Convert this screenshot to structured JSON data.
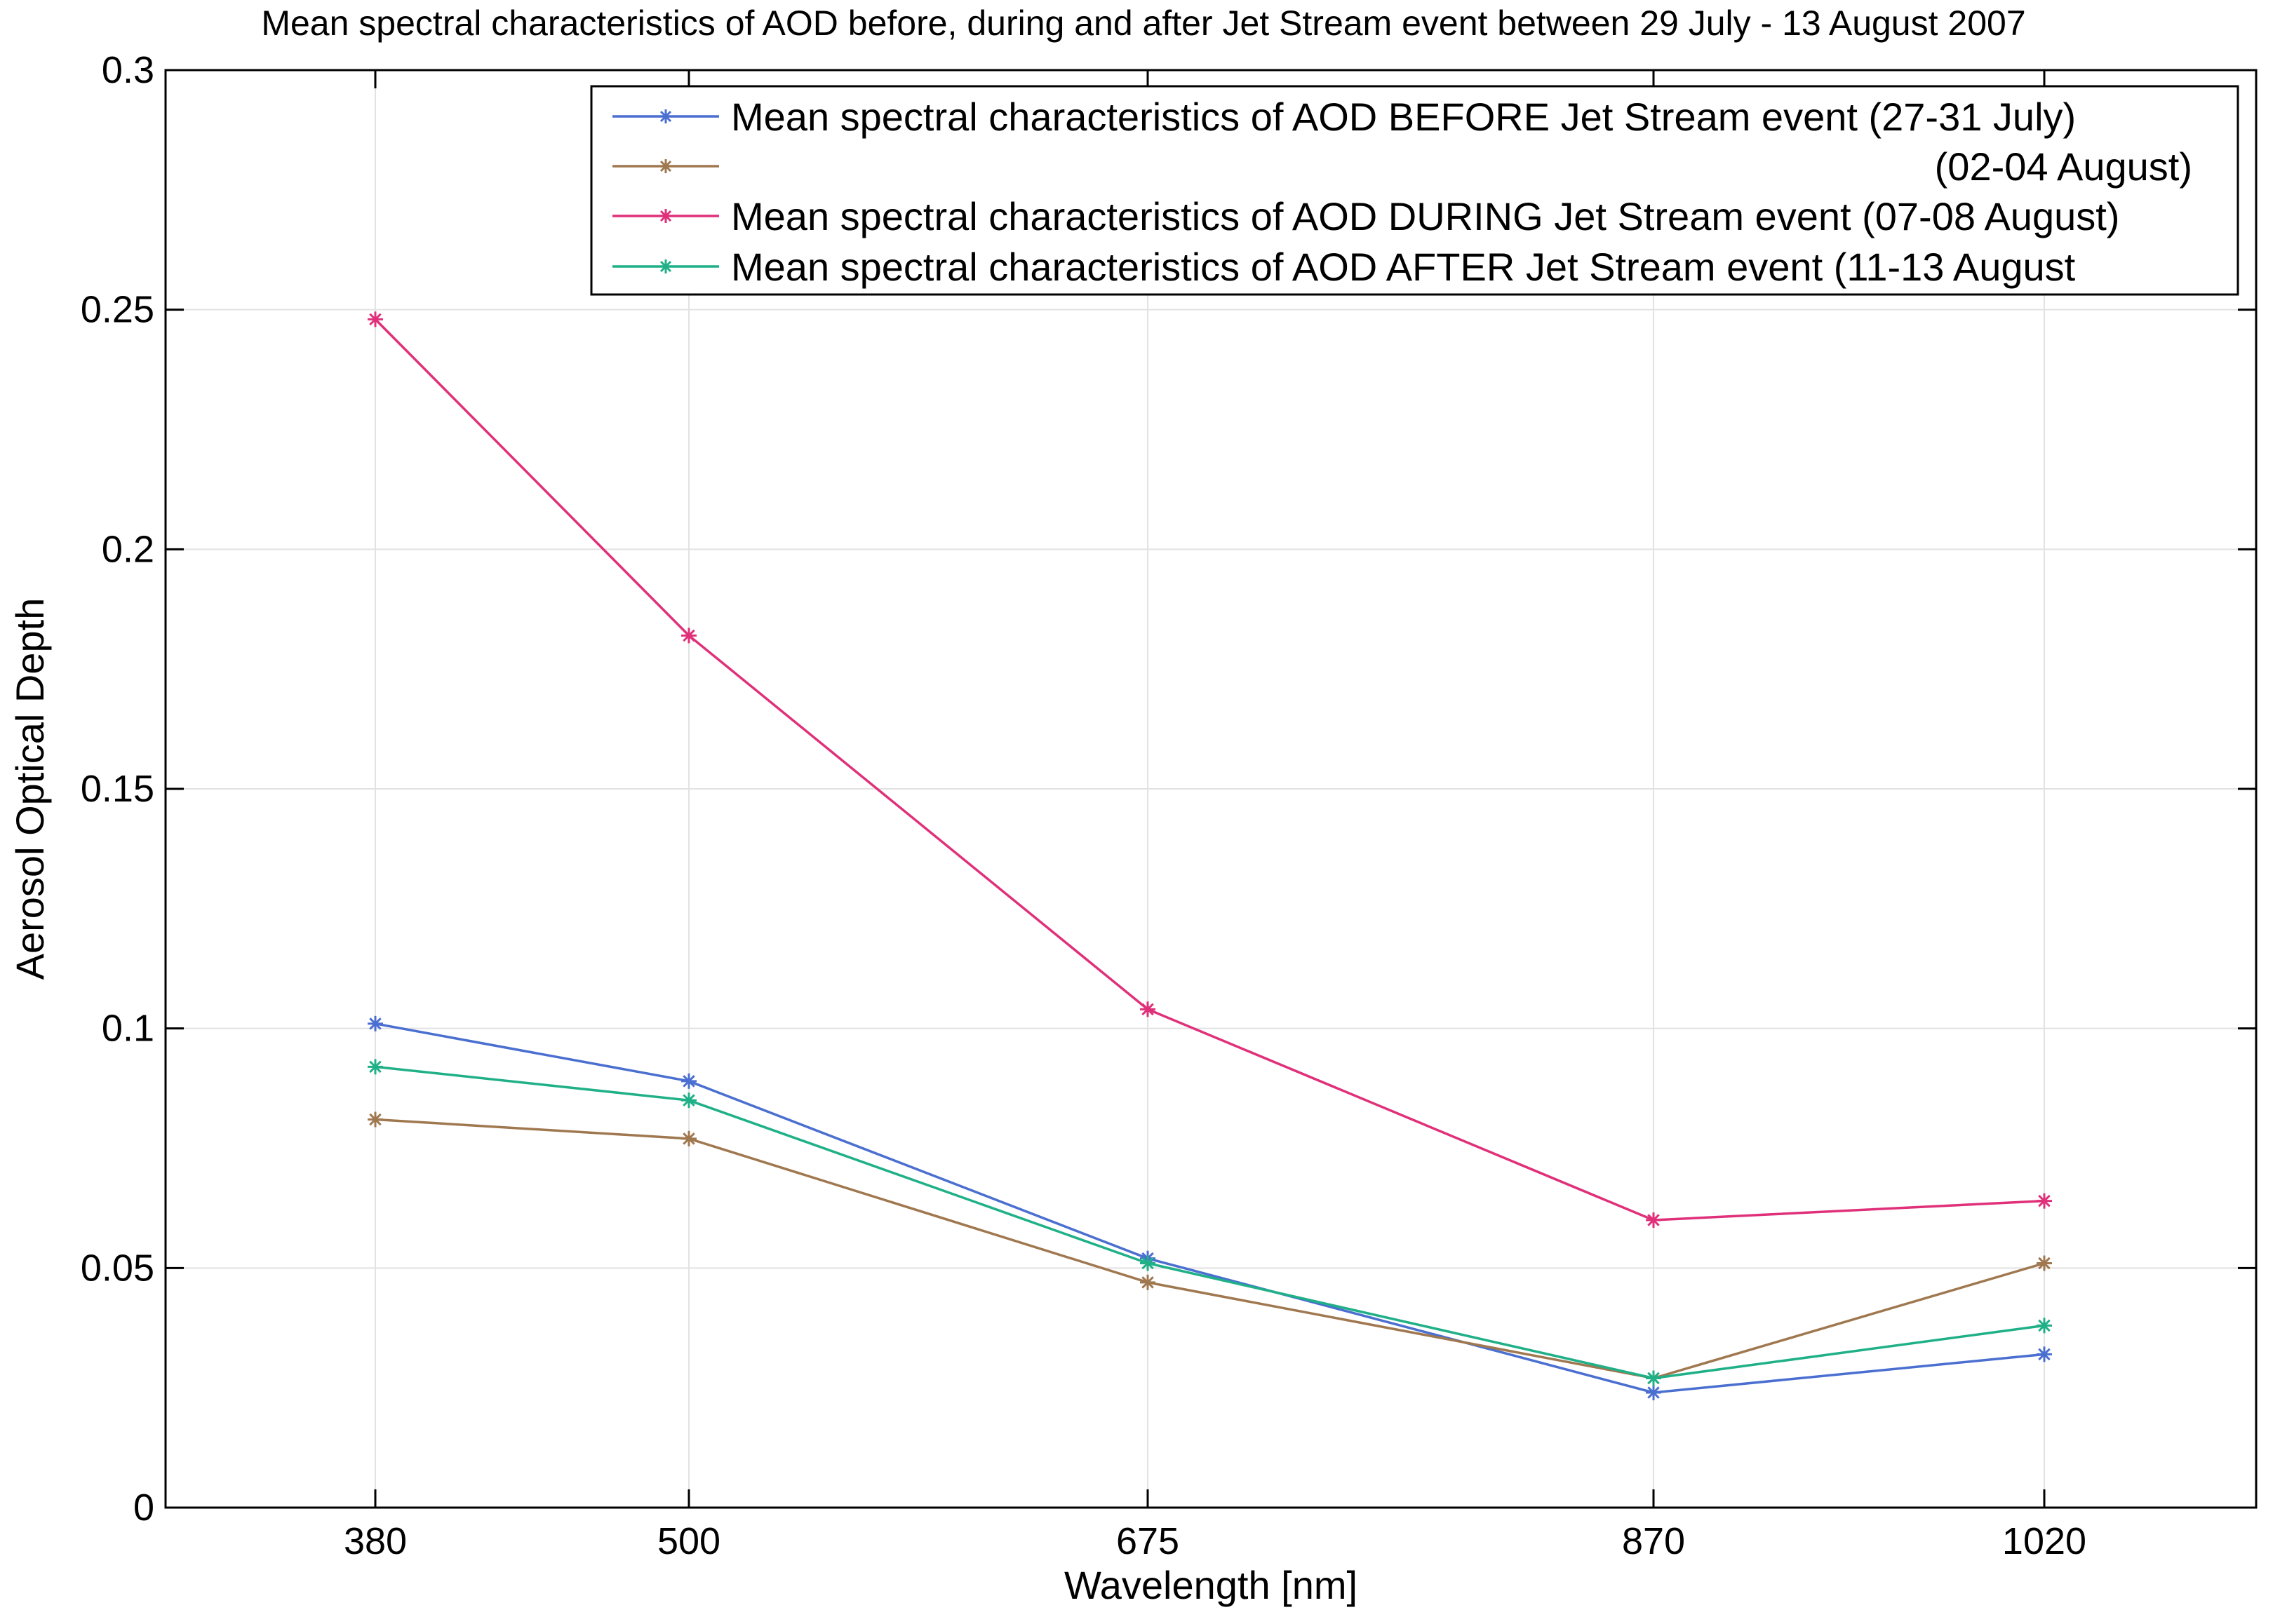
{
  "chart_data": {
    "type": "line",
    "title": "Mean spectral characteristics of AOD before, during and after Jet Stream event between 29 July - 13 August 2007",
    "xlabel": "Wavelength [nm]",
    "ylabel": "Aerosol Optical Depth",
    "categories": [
      "380",
      "500",
      "675",
      "870",
      "1020"
    ],
    "ylim": [
      0,
      0.3
    ],
    "yticks": [
      0,
      0.05,
      0.1,
      0.15,
      0.2,
      0.25,
      0.3
    ],
    "ytick_labels": [
      "0",
      "0.05",
      "0.1",
      "0.15",
      "0.2",
      "0.25",
      "0.3"
    ],
    "grid": true,
    "legend_position": "top-right",
    "series": [
      {
        "name": "Mean spectral characteristics of AOD BEFORE Jet Stream event (27-31 July)",
        "color": "#4a6fd0",
        "marker": "star",
        "values": [
          0.101,
          0.089,
          0.052,
          0.024,
          0.032
        ]
      },
      {
        "name": "(02-04 August)",
        "color": "#a07850",
        "marker": "star",
        "values": [
          0.081,
          0.077,
          0.047,
          0.027,
          0.051
        ]
      },
      {
        "name": "Mean spectral characteristics of AOD DURING Jet Stream event (07-08 August)",
        "color": "#e0307a",
        "marker": "star",
        "values": [
          0.248,
          0.182,
          0.104,
          0.06,
          0.064
        ]
      },
      {
        "name": "Mean spectral characteristics of AOD AFTER Jet Stream event (11-13 August",
        "color": "#20b088",
        "marker": "star",
        "values": [
          0.092,
          0.085,
          0.051,
          0.027,
          0.038
        ]
      }
    ]
  }
}
